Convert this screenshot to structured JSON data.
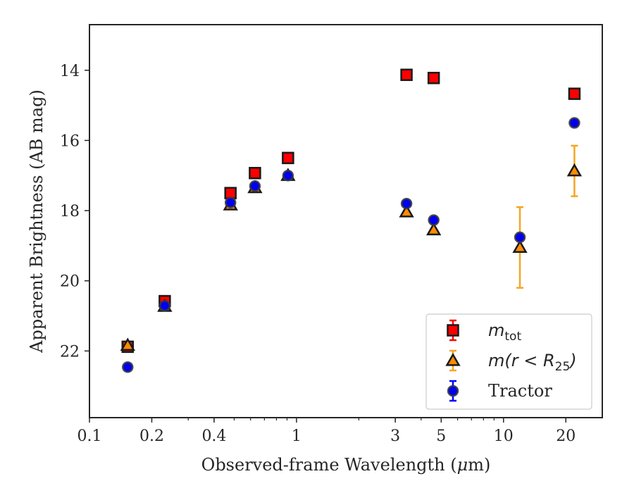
{
  "chart_data": {
    "type": "scatter",
    "xscale": "log",
    "yaxis_inverted": true,
    "xlim": [
      0.1,
      30
    ],
    "ylim": [
      12.7,
      23.9
    ],
    "xlabel_prefix": "Observed-frame Wavelength (",
    "xlabel_mu": "μ",
    "xlabel_suffix": "m)",
    "ylabel": "Apparent Brightness (AB mag)",
    "x_ticks": [
      {
        "value": 0.1,
        "label": "0.1"
      },
      {
        "value": 0.2,
        "label": "0.2"
      },
      {
        "value": 0.4,
        "label": "0.4"
      },
      {
        "value": 1,
        "label": "1"
      },
      {
        "value": 3,
        "label": "3"
      },
      {
        "value": 5,
        "label": "5"
      },
      {
        "value": 10,
        "label": "10"
      },
      {
        "value": 20,
        "label": "20"
      }
    ],
    "y_ticks": [
      {
        "value": 14,
        "label": "14"
      },
      {
        "value": 16,
        "label": "16"
      },
      {
        "value": 18,
        "label": "18"
      },
      {
        "value": 20,
        "label": "20"
      },
      {
        "value": 22,
        "label": "22"
      }
    ],
    "grid": false,
    "legend_position": "lower-right",
    "series": [
      {
        "key": "mtot",
        "label_main": "m",
        "label_sub": "tot",
        "marker": "square",
        "face_color": "#ff0000",
        "edge_color": "#1a1a1a",
        "error_color": "#ff0000",
        "points": [
          {
            "x": 0.153,
            "y": 21.88,
            "yerr": 0.05
          },
          {
            "x": 0.231,
            "y": 20.58,
            "yerr": 0.05
          },
          {
            "x": 0.48,
            "y": 17.5,
            "yerr": 0.03
          },
          {
            "x": 0.63,
            "y": 16.93,
            "yerr": 0.03
          },
          {
            "x": 0.91,
            "y": 16.5,
            "yerr": 0.03
          },
          {
            "x": 3.4,
            "y": 14.13,
            "yerr": 0.03
          },
          {
            "x": 4.6,
            "y": 14.22,
            "yerr": 0.03
          },
          {
            "x": 22,
            "y": 14.67,
            "yerr": 0.05
          }
        ]
      },
      {
        "key": "mr25",
        "label_main": "m(r < R",
        "label_sub": "25",
        "label_end": ")",
        "marker": "triangle",
        "face_color": "#ff8c00",
        "edge_color": "#1a1a1a",
        "error_color": "#f5a623",
        "points": [
          {
            "x": 0.153,
            "y": 21.84,
            "yerr": 0.05
          },
          {
            "x": 0.231,
            "y": 20.73,
            "yerr": 0.04
          },
          {
            "x": 0.48,
            "y": 17.84,
            "yerr": 0.03
          },
          {
            "x": 0.63,
            "y": 17.35,
            "yerr": 0.03
          },
          {
            "x": 0.91,
            "y": 17.0,
            "yerr": 0.03
          },
          {
            "x": 3.4,
            "y": 18.04,
            "yerr": 0.03
          },
          {
            "x": 4.6,
            "y": 18.55,
            "yerr": 0.03
          },
          {
            "x": 12,
            "y": 19.05,
            "yerr": 1.15
          },
          {
            "x": 22,
            "y": 16.87,
            "yerr": 0.72
          }
        ]
      },
      {
        "key": "tractor",
        "label_main": "Tractor",
        "marker": "circle",
        "face_color": "#0000ee",
        "edge_color": "#3a3a3a",
        "error_color": "#0000ff",
        "points": [
          {
            "x": 0.153,
            "y": 22.46,
            "yerr": 0.05
          },
          {
            "x": 0.231,
            "y": 20.71,
            "yerr": 0.04
          },
          {
            "x": 0.48,
            "y": 17.77,
            "yerr": 0.03
          },
          {
            "x": 0.63,
            "y": 17.3,
            "yerr": 0.03
          },
          {
            "x": 0.91,
            "y": 17.0,
            "yerr": 0.03
          },
          {
            "x": 3.4,
            "y": 17.8,
            "yerr": 0.03
          },
          {
            "x": 4.6,
            "y": 18.27,
            "yerr": 0.03
          },
          {
            "x": 12,
            "y": 18.76,
            "yerr": 0.05
          },
          {
            "x": 22,
            "y": 15.5,
            "yerr": 0.05
          }
        ]
      }
    ]
  }
}
